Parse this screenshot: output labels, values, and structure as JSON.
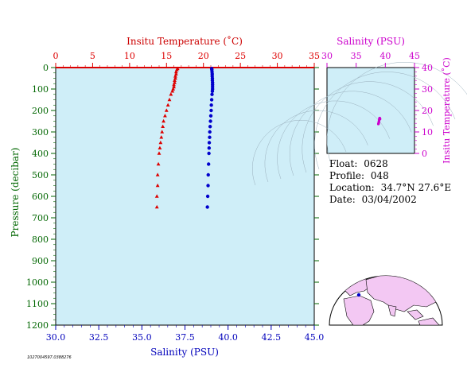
{
  "colors": {
    "plot_bg": "#cfeef8",
    "axis": "#000000",
    "temperature": "#dd0000",
    "salinity": "#0000cc",
    "pressure_axis": "#006600",
    "ts_axis": "#cc00cc",
    "map_land": "#f3c8f3",
    "map_ocean": "#ffffff"
  },
  "float_info": {
    "float_label": "Float:",
    "float_value": "0628",
    "profile_label": "Profile:",
    "profile_value": "048",
    "location_label": "Location:",
    "location_value": "34.7°N  27.6°E",
    "date_label": "Date:",
    "date_value": "03/04/2002"
  },
  "footer_id": "1027004597.0388276",
  "chart_data": [
    {
      "type": "scatter",
      "id": "profile",
      "title": "",
      "top_axis_label": "Insitu Temperature (˚C)",
      "top_ticks": [
        "0",
        "5",
        "10",
        "15",
        "20",
        "25",
        "30",
        "35"
      ],
      "top_range": [
        0,
        35
      ],
      "bottom_axis_label": "Salinity (PSU)",
      "bottom_ticks": [
        "30.0",
        "32.5",
        "35.0",
        "37.5",
        "40.0",
        "42.5",
        "45.0"
      ],
      "bottom_range": [
        30,
        45
      ],
      "ylabel": "Pressure (decibar)",
      "y_ticks": [
        "0",
        "100",
        "200",
        "300",
        "400",
        "500",
        "600",
        "700",
        "800",
        "900",
        "1000",
        "1100",
        "1200"
      ],
      "y_range": [
        0,
        1200
      ],
      "y_reversed": true,
      "grid": false,
      "series": [
        {
          "marker": "triangle",
          "pressure": [
            5,
            10,
            20,
            30,
            40,
            50,
            60,
            70,
            80,
            90,
            100,
            110,
            125,
            150,
            175,
            200,
            225,
            250,
            275,
            300,
            325,
            350,
            375,
            400,
            450,
            500,
            550,
            600,
            650
          ],
          "temperature": [
            16.5,
            16.4,
            16.3,
            16.3,
            16.2,
            16.2,
            16.1,
            16.1,
            16.0,
            16.0,
            15.9,
            15.8,
            15.6,
            15.4,
            15.2,
            15.0,
            14.8,
            14.6,
            14.5,
            14.4,
            14.3,
            14.2,
            14.1,
            14.0,
            13.9,
            13.8,
            13.8,
            13.7,
            13.7
          ]
        },
        {
          "marker": "circle",
          "pressure": [
            5,
            10,
            20,
            30,
            40,
            50,
            60,
            70,
            80,
            90,
            100,
            110,
            125,
            150,
            175,
            200,
            225,
            250,
            275,
            300,
            325,
            350,
            375,
            400,
            450,
            500,
            550,
            600,
            650
          ],
          "salinity": [
            39.05,
            39.06,
            39.07,
            39.08,
            39.08,
            39.09,
            39.09,
            39.1,
            39.1,
            39.1,
            39.1,
            39.09,
            39.07,
            39.05,
            39.03,
            39.02,
            39.0,
            38.98,
            38.96,
            38.94,
            38.93,
            38.91,
            38.9,
            38.89,
            38.87,
            38.85,
            38.84,
            38.82,
            38.8
          ]
        }
      ]
    },
    {
      "type": "scatter",
      "id": "ts_diagram",
      "title": "",
      "top_axis_label": "Salinity (PSU)",
      "top_ticks": [
        "30",
        "35",
        "40",
        "45"
      ],
      "x_range": [
        30,
        45
      ],
      "ylabel": "Insitu Temperature (˚C)",
      "y_ticks": [
        "0",
        "10",
        "20",
        "30",
        "40"
      ],
      "y_range": [
        0,
        40
      ],
      "contours": true,
      "points": [
        [
          38.8,
          13.7
        ],
        [
          38.82,
          13.8
        ],
        [
          38.84,
          14.0
        ],
        [
          38.87,
          14.3
        ],
        [
          38.89,
          14.6
        ],
        [
          38.91,
          15.0
        ],
        [
          38.94,
          15.4
        ],
        [
          38.96,
          15.8
        ],
        [
          38.98,
          16.1
        ],
        [
          39.0,
          16.3
        ],
        [
          39.03,
          16.5
        ],
        [
          39.05,
          16.4
        ],
        [
          39.08,
          16.2
        ],
        [
          39.1,
          16.0
        ]
      ]
    }
  ]
}
